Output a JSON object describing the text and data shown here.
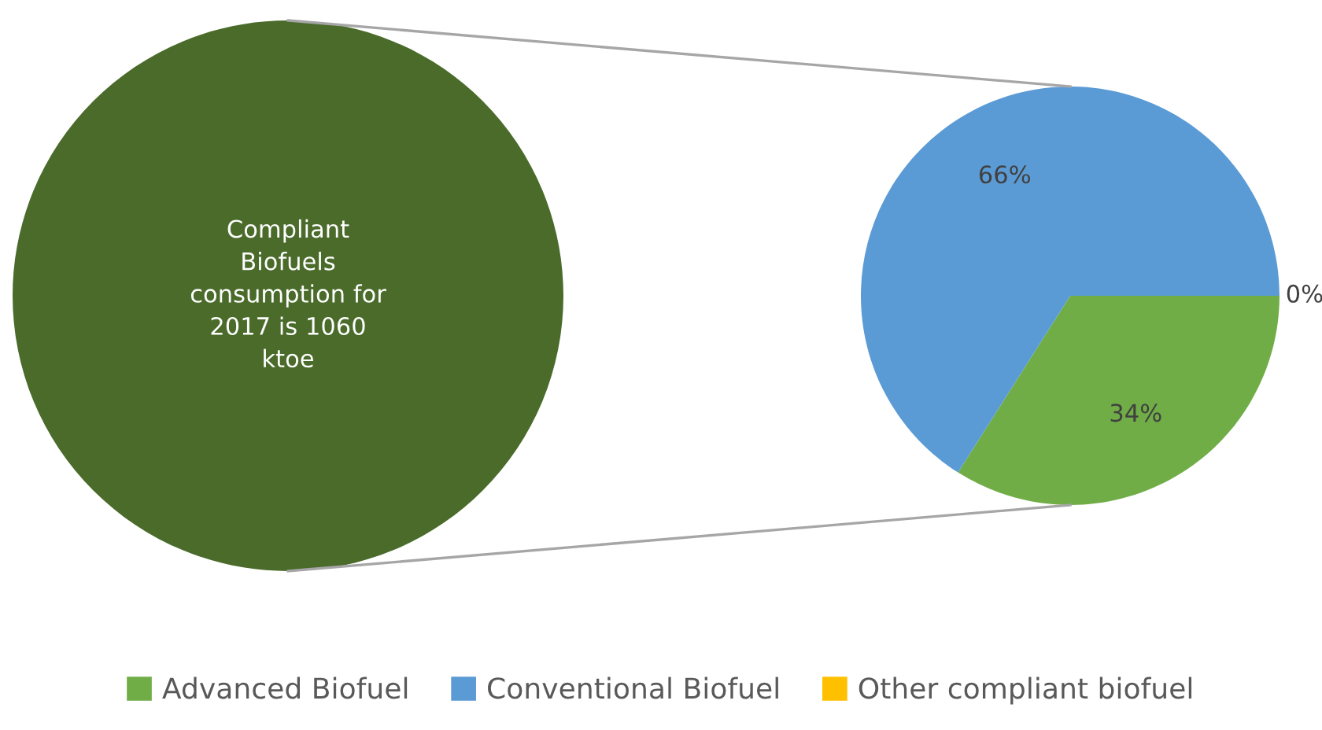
{
  "chart_data": [
    {
      "type": "pie",
      "categories": [
        null
      ],
      "values": [
        100
      ],
      "colors": [
        "#4a6b2a"
      ],
      "annotations": [
        "Compliant\nBiofuels\nconsumption for\n2017 is 1060\nktoe"
      ]
    },
    {
      "type": "pie",
      "categories": [
        "Advanced Biofuel",
        "Conventional Biofuel",
        "Other compliant biofuel"
      ],
      "values": [
        34,
        66,
        0
      ],
      "colors": [
        "#70ad47",
        "#5b9bd5",
        "#ffc000"
      ],
      "value_labels": [
        "34%",
        "66%",
        "0%"
      ],
      "legend": "bottom"
    }
  ]
}
